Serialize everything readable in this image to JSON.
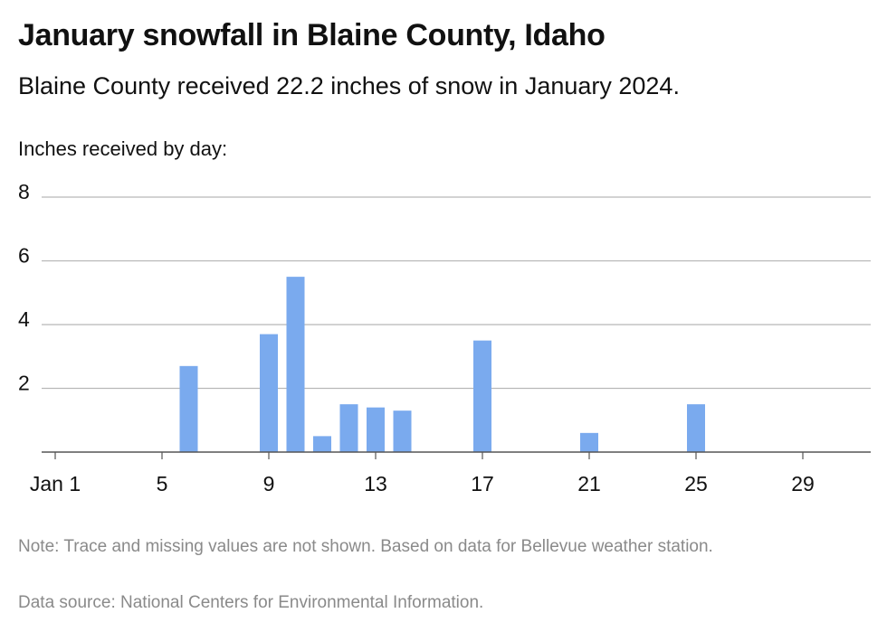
{
  "title": "January snowfall in Blaine County, Idaho",
  "subtitle": "Blaine County received 22.2 inches of snow in January 2024.",
  "axis_caption": "Inches received by day:",
  "note": "Note: Trace and missing values are not shown. Based on data for Bellevue weather station.",
  "source": "Data source: National Centers for Environmental Information.",
  "colors": {
    "bar": "#7aaaee",
    "grid": "#b8b8b8",
    "axis": "#555555",
    "muted_text": "#8a8a8a"
  },
  "chart_data": {
    "type": "bar",
    "title": "January snowfall in Blaine County, Idaho",
    "xlabel": "",
    "ylabel": "Inches received by day:",
    "x_range": [
      1,
      31
    ],
    "ylim": [
      0,
      8
    ],
    "y_ticks": [
      2,
      4,
      6,
      8
    ],
    "x_ticks": [
      {
        "day": 1,
        "label": "Jan 1"
      },
      {
        "day": 5,
        "label": "5"
      },
      {
        "day": 9,
        "label": "9"
      },
      {
        "day": 13,
        "label": "13"
      },
      {
        "day": 17,
        "label": "17"
      },
      {
        "day": 21,
        "label": "21"
      },
      {
        "day": 25,
        "label": "25"
      },
      {
        "day": 29,
        "label": "29"
      }
    ],
    "grid": true,
    "legend": "none",
    "series": [
      {
        "points": [
          {
            "day": 6,
            "value": 2.7
          },
          {
            "day": 9,
            "value": 3.7
          },
          {
            "day": 10,
            "value": 5.5
          },
          {
            "day": 11,
            "value": 0.5
          },
          {
            "day": 12,
            "value": 1.5
          },
          {
            "day": 13,
            "value": 1.4
          },
          {
            "day": 14,
            "value": 1.3
          },
          {
            "day": 17,
            "value": 3.5
          },
          {
            "day": 21,
            "value": 0.6
          },
          {
            "day": 25,
            "value": 1.5
          }
        ]
      }
    ]
  }
}
